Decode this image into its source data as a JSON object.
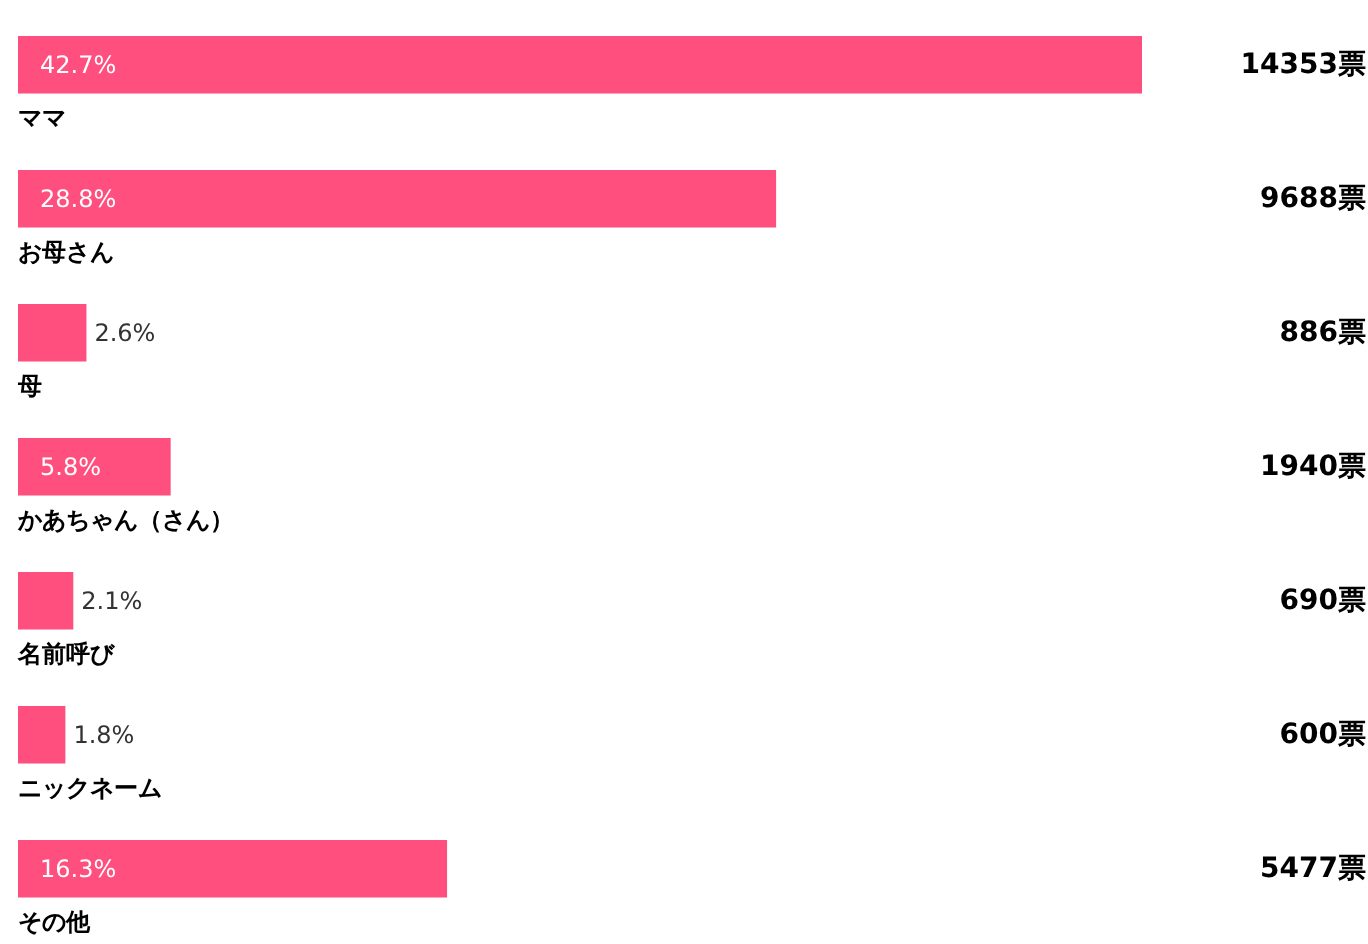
{
  "chart_data": {
    "type": "bar",
    "orientation": "horizontal",
    "categories": [
      "ママ",
      "お母さん",
      "母",
      "かあちゃん（さん）",
      "名前呼び",
      "ニックネーム",
      "その他"
    ],
    "values": [
      42.7,
      28.8,
      2.6,
      5.8,
      2.1,
      1.8,
      16.3
    ],
    "color": "#ff4f7f",
    "value_labels": [
      "42.7%",
      "28.8%",
      "2.6%",
      "5.8%",
      "2.1%",
      "1.8%",
      "16.3%"
    ],
    "annotations": [
      "14353票",
      "9688票",
      "886票",
      "1940票",
      "690票",
      "600票",
      "5477票"
    ]
  }
}
